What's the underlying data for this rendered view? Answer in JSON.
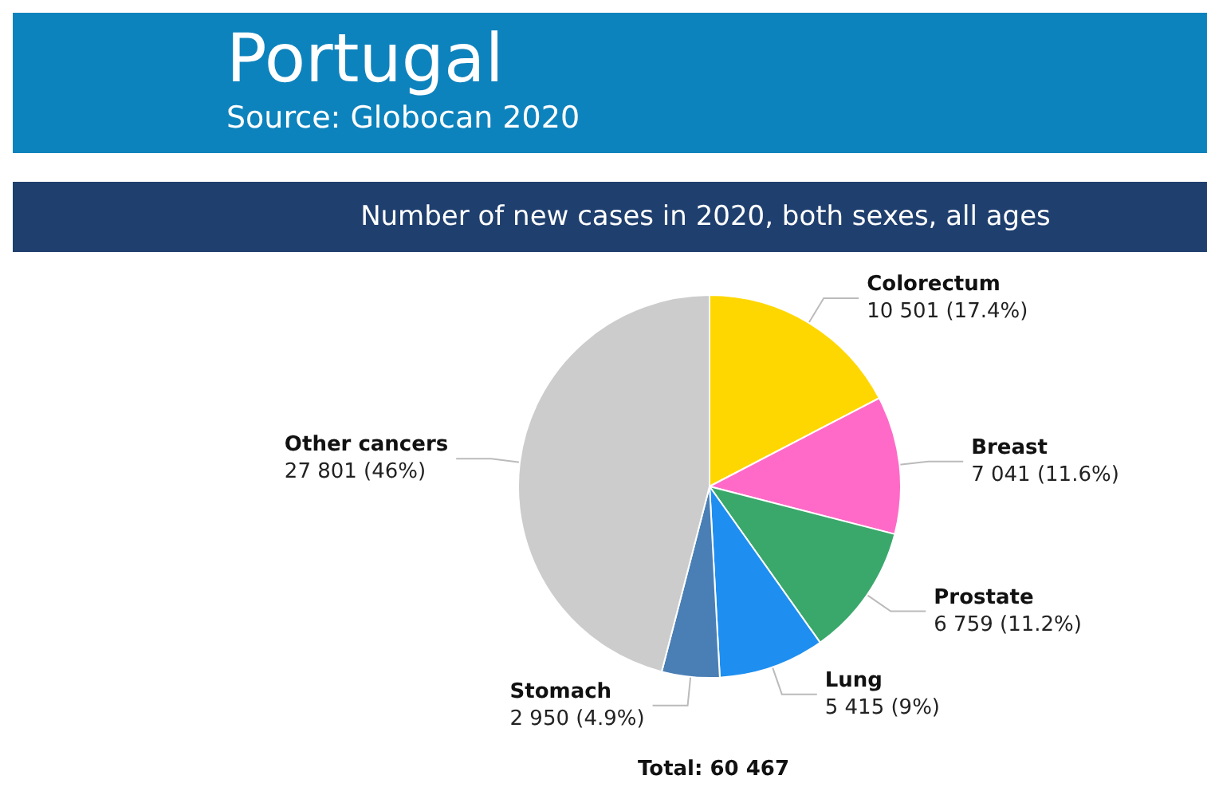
{
  "chart_data": {
    "type": "pie",
    "title": "Portugal",
    "subtitle": "Number of new cases in 2020, both sexes, all ages",
    "annotations": [
      "Source: Globocan 2020",
      "Total: 60 467"
    ],
    "categories": [
      "Colorectum",
      "Breast",
      "Prostate",
      "Lung",
      "Stomach",
      "Other cancers"
    ],
    "values": [
      10501,
      7041,
      6759,
      5415,
      2950,
      27801
    ],
    "value_labels": [
      "10 501 (17.4%)",
      "7 041 (11.6%)",
      "6 759 (11.2%)",
      "5 415 (9%)",
      "2 950 (4.9%)",
      "27 801 (46%)"
    ],
    "colors": [
      "#ffd700",
      "#ff6ac8",
      "#3aa86b",
      "#1e8ff0",
      "#4a7fb5",
      "#cccccc"
    ],
    "legend": false
  }
}
